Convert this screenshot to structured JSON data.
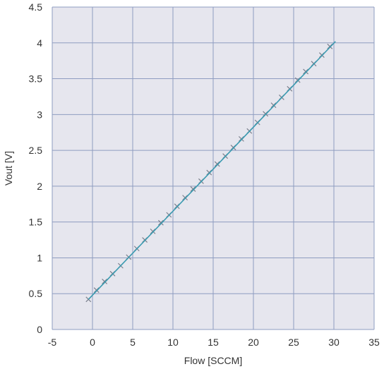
{
  "colors": {
    "plot_background": "#e6e6ee",
    "grid": "#8e9cc0",
    "fit_line": "#3a9ab0",
    "markers": "#7a7f8c",
    "text": "#333333"
  },
  "chart_data": {
    "type": "scatter",
    "title": "",
    "xlabel": "Flow [SCCM]",
    "ylabel": "Vout [V]",
    "xlim": [
      -5,
      35
    ],
    "ylim": [
      0,
      4.5
    ],
    "grid": true,
    "legend": "none",
    "x_ticks": [
      -5,
      0,
      5,
      10,
      15,
      20,
      25,
      30,
      35
    ],
    "y_ticks": [
      0,
      0.5,
      1,
      1.5,
      2,
      2.5,
      3,
      3.5,
      4,
      4.5
    ],
    "x_tick_labels": [
      "-5",
      "0",
      "5",
      "10",
      "15",
      "20",
      "25",
      "30",
      "35"
    ],
    "y_tick_labels": [
      "0",
      "0.5",
      "1",
      "1.5",
      "2",
      "2.5",
      "3",
      "3.5",
      "4",
      "4.5"
    ],
    "series": [
      {
        "kind": "measurements",
        "marker": "x",
        "x": [
          -0.5,
          0.5,
          1.5,
          2.5,
          3.5,
          4.5,
          5.5,
          6.5,
          7.5,
          8.5,
          9.5,
          10.5,
          11.5,
          12.5,
          13.5,
          14.5,
          15.5,
          16.5,
          17.5,
          18.5,
          19.5,
          20.5,
          21.5,
          22.5,
          23.5,
          24.5,
          25.5,
          26.5,
          27.5,
          28.5,
          29.5
        ],
        "y": [
          0.42,
          0.55,
          0.67,
          0.78,
          0.89,
          1.01,
          1.13,
          1.25,
          1.37,
          1.49,
          1.6,
          1.72,
          1.84,
          1.96,
          2.07,
          2.19,
          2.31,
          2.42,
          2.54,
          2.66,
          2.77,
          2.89,
          3.01,
          3.13,
          3.24,
          3.36,
          3.48,
          3.6,
          3.71,
          3.83,
          3.95
        ]
      },
      {
        "kind": "linear_fit",
        "x": [
          -0.5,
          30.2
        ],
        "y": [
          0.42,
          4.02
        ]
      }
    ]
  }
}
